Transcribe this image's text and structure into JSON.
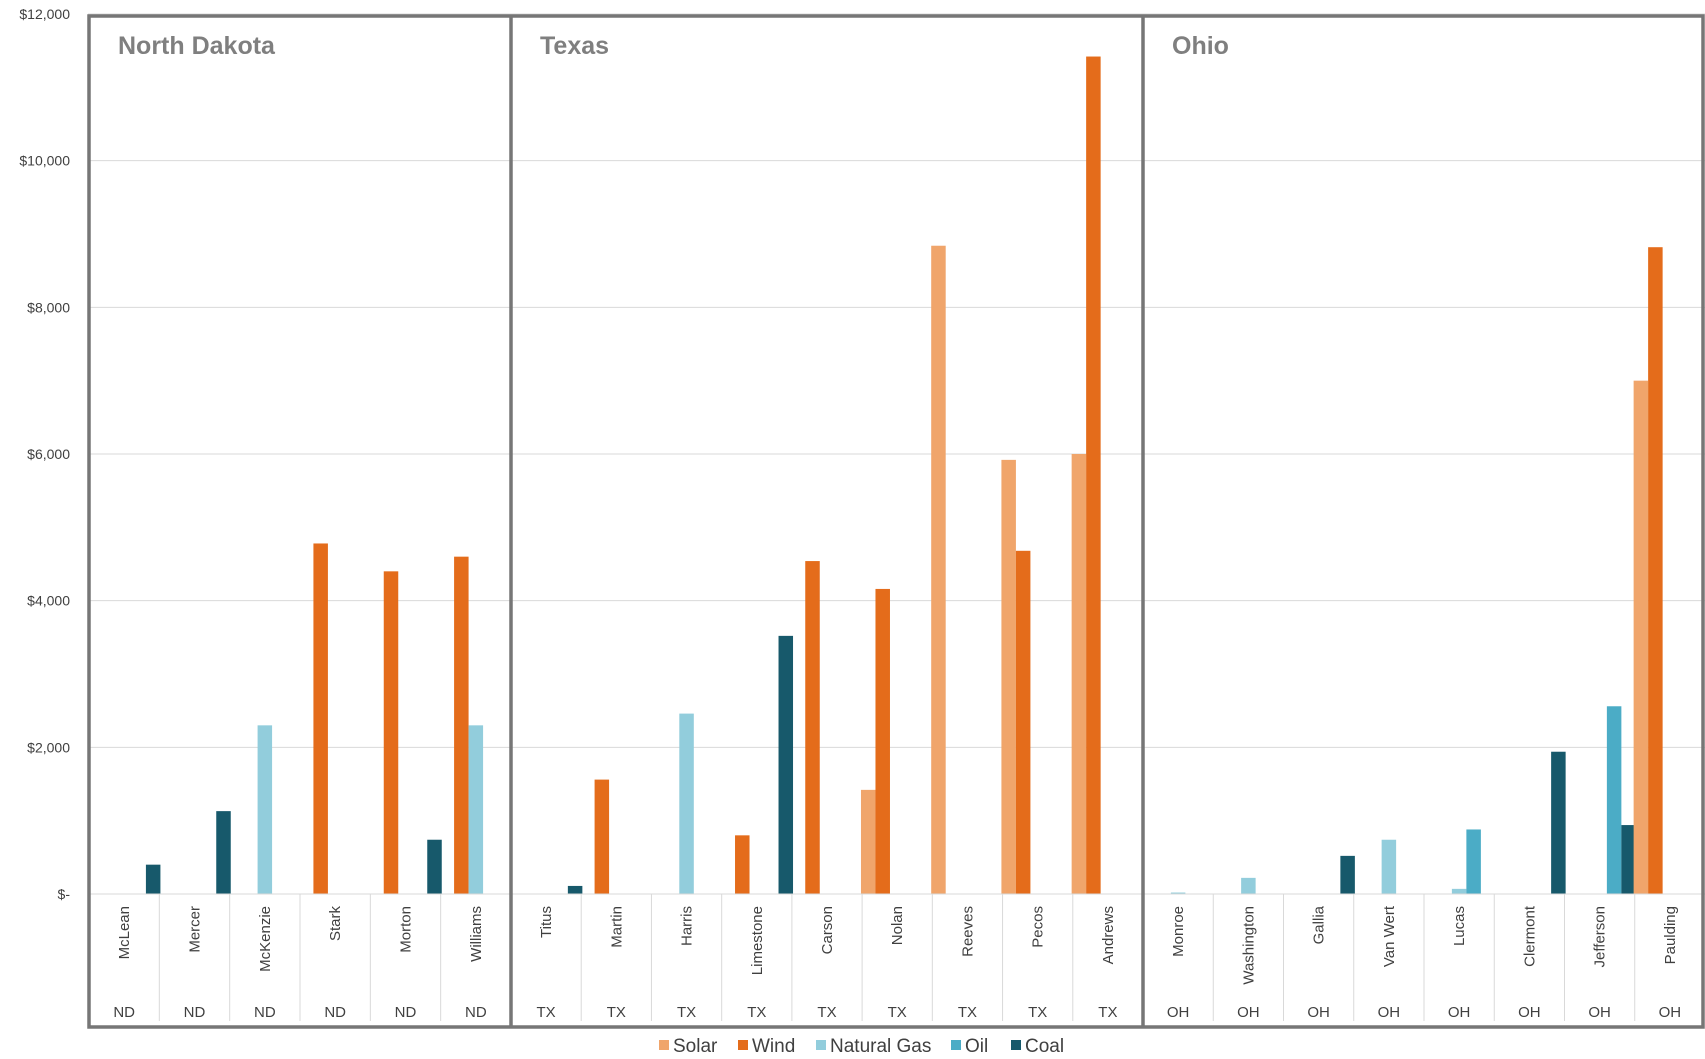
{
  "chart_data": {
    "type": "bar",
    "ylim": [
      0,
      12000
    ],
    "yticks": [
      {
        "value": 0,
        "label": "$-"
      },
      {
        "value": 2000,
        "label": "$2,000"
      },
      {
        "value": 4000,
        "label": "$4,000"
      },
      {
        "value": 6000,
        "label": "$6,000"
      },
      {
        "value": 8000,
        "label": "$8,000"
      },
      {
        "value": 10000,
        "label": "$10,000"
      },
      {
        "value": 12000,
        "label": "$12,000"
      }
    ],
    "grid": true,
    "legend_position": "bottom",
    "series": [
      {
        "name": "Solar",
        "color": "#f0a56b"
      },
      {
        "name": "Wind",
        "color": "#e46c1b"
      },
      {
        "name": "Natural Gas",
        "color": "#92cddc"
      },
      {
        "name": "Oil",
        "color": "#4bacc6"
      },
      {
        "name": "Coal",
        "color": "#17596b"
      }
    ],
    "panels": [
      {
        "title": "North Dakota",
        "abbr": "ND",
        "counties": [
          {
            "name": "McLean",
            "values": [
              0,
              0,
              0,
              0,
              400
            ]
          },
          {
            "name": "Mercer",
            "values": [
              0,
              0,
              0,
              0,
              1130
            ]
          },
          {
            "name": "McKenzie",
            "values": [
              0,
              0,
              2300,
              0,
              0
            ]
          },
          {
            "name": "Stark",
            "values": [
              0,
              4780,
              0,
              0,
              0
            ]
          },
          {
            "name": "Morton",
            "values": [
              0,
              4400,
              0,
              0,
              740
            ]
          },
          {
            "name": "Williams",
            "values": [
              0,
              4600,
              2300,
              0,
              0
            ]
          }
        ]
      },
      {
        "title": "Texas",
        "abbr": "TX",
        "counties": [
          {
            "name": "Titus",
            "values": [
              0,
              0,
              0,
              0,
              110
            ]
          },
          {
            "name": "Martin",
            "values": [
              0,
              1560,
              0,
              0,
              0
            ]
          },
          {
            "name": "Harris",
            "values": [
              0,
              0,
              2460,
              0,
              0
            ]
          },
          {
            "name": "Limestone",
            "values": [
              0,
              800,
              0,
              0,
              3520
            ]
          },
          {
            "name": "Carson",
            "values": [
              0,
              4540,
              0,
              0,
              0
            ]
          },
          {
            "name": "Nolan",
            "values": [
              1420,
              4160,
              0,
              0,
              0
            ]
          },
          {
            "name": "Reeves",
            "values": [
              8840,
              0,
              0,
              0,
              0
            ]
          },
          {
            "name": "Pecos",
            "values": [
              5920,
              4680,
              0,
              0,
              0
            ]
          },
          {
            "name": "Andrews",
            "values": [
              6000,
              11420,
              0,
              0,
              0
            ]
          }
        ]
      },
      {
        "title": "Ohio",
        "abbr": "OH",
        "counties": [
          {
            "name": "Monroe",
            "values": [
              0,
              0,
              20,
              0,
              0
            ]
          },
          {
            "name": "Washington",
            "values": [
              0,
              0,
              220,
              0,
              0
            ]
          },
          {
            "name": "Gallia",
            "values": [
              0,
              0,
              0,
              0,
              520
            ]
          },
          {
            "name": "Van Wert",
            "values": [
              0,
              0,
              740,
              0,
              0
            ]
          },
          {
            "name": "Lucas",
            "values": [
              0,
              0,
              70,
              880,
              0
            ]
          },
          {
            "name": "Clermont",
            "values": [
              0,
              0,
              0,
              0,
              1940
            ]
          },
          {
            "name": "Jefferson",
            "values": [
              0,
              0,
              0,
              2560,
              940
            ]
          },
          {
            "name": "Paulding",
            "values": [
              7000,
              8820,
              0,
              0,
              0
            ]
          }
        ]
      }
    ]
  }
}
